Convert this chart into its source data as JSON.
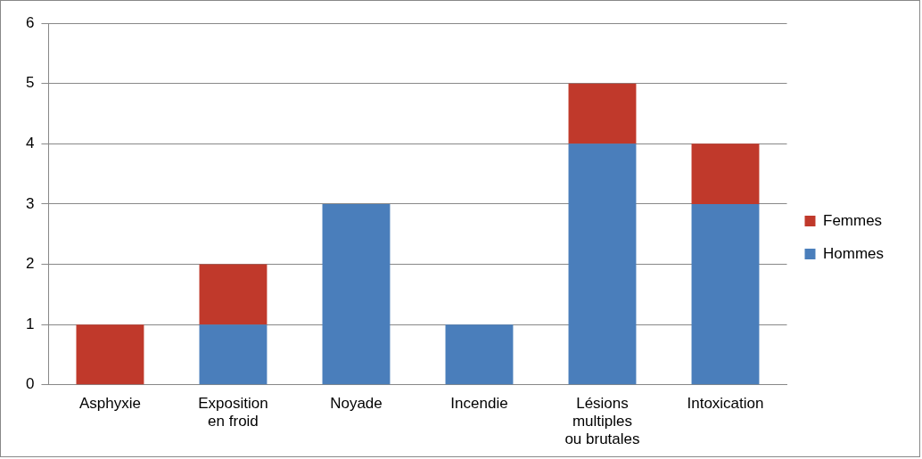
{
  "chart_data": {
    "type": "bar",
    "stacked": true,
    "categories": [
      "Asphyxie",
      "Exposition en froid",
      "Noyade",
      "Incendie",
      "Lésions multiples ou brutales",
      "Intoxication"
    ],
    "series": [
      {
        "name": "Hommes",
        "color": "#4a7ebb",
        "values": [
          0,
          1,
          3,
          1,
          4,
          3
        ]
      },
      {
        "name": "Femmes",
        "color": "#c0392b",
        "values": [
          1,
          1,
          0,
          0,
          1,
          1
        ]
      }
    ],
    "ylim": [
      0,
      6
    ],
    "yticks": [
      0,
      1,
      2,
      3,
      4,
      5,
      6
    ],
    "grid": "y",
    "legend": "right"
  }
}
